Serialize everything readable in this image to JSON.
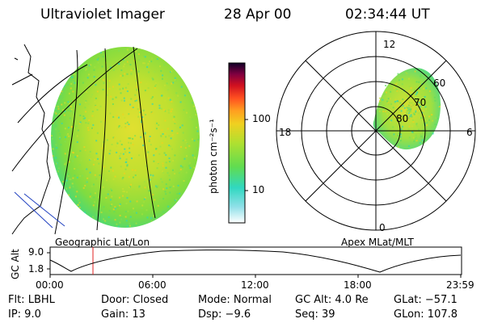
{
  "header": {
    "instrument": "Ultraviolet Imager",
    "date": "28 Apr 00",
    "time": "02:34:44 UT"
  },
  "colorbar": {
    "label": "photon cm⁻²s⁻¹",
    "ticks": [
      "100",
      "10"
    ],
    "scale": "log",
    "colors": [
      "#ffffff",
      "#8fe0e0",
      "#30d8b0",
      "#80e050",
      "#c8e030",
      "#f0d020",
      "#ffa020",
      "#ff6020",
      "#e02020",
      "#a01030",
      "#500040",
      "#101030"
    ]
  },
  "left_panel": {
    "caption": "Geographic Lat/Lon"
  },
  "right_panel": {
    "caption": "Apex MLat/MLT",
    "mlt_labels": [
      "12",
      "18",
      "6",
      "0"
    ],
    "lat_labels": [
      "60",
      "70",
      "80"
    ]
  },
  "altitude_plot": {
    "ylabel": "GC Alt",
    "yticks": [
      "9.0",
      "1.8"
    ],
    "xticks": [
      "00:00",
      "06:00",
      "12:00",
      "18:00",
      "23:59"
    ]
  },
  "status": {
    "flt": "Flt: LBHL",
    "door": "Door: Closed",
    "mode": "Mode: Normal",
    "gc_alt": "GC Alt: 4.0 Re",
    "glat": "GLat: −57.1",
    "ip": "IP:  9.0",
    "gain": "Gain: 13",
    "dsp": "Dsp:   −9.6",
    "seq": "Seq: 39",
    "glon": "GLon: 107.8"
  }
}
